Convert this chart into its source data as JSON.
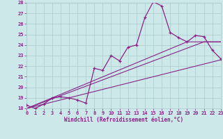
{
  "xlabel": "Windchill (Refroidissement éolien,°C)",
  "x_values": [
    0,
    1,
    2,
    3,
    4,
    5,
    6,
    7,
    8,
    9,
    10,
    11,
    12,
    13,
    14,
    15,
    16,
    17,
    18,
    19,
    20,
    21,
    22,
    23
  ],
  "y_main": [
    18.3,
    18.0,
    18.4,
    19.0,
    19.1,
    19.0,
    18.8,
    18.5,
    21.8,
    21.6,
    23.0,
    22.5,
    23.8,
    24.0,
    26.6,
    28.1,
    27.7,
    25.2,
    24.7,
    24.3,
    24.9,
    24.8,
    23.5,
    22.7
  ],
  "ylim": [
    18,
    28
  ],
  "xlim": [
    0,
    23
  ],
  "yticks": [
    18,
    19,
    20,
    21,
    22,
    23,
    24,
    25,
    26,
    27,
    28
  ],
  "xticks": [
    0,
    1,
    2,
    3,
    4,
    5,
    6,
    7,
    8,
    9,
    10,
    11,
    12,
    13,
    14,
    15,
    16,
    17,
    18,
    19,
    20,
    21,
    22,
    23
  ],
  "line_color": "#882288",
  "bg_color": "#cce8e8",
  "grid_color": "#aacccc",
  "ref_line1": [
    [
      0,
      18.0
    ],
    [
      23,
      22.6
    ]
  ],
  "ref_line2": [
    [
      0,
      18.0
    ],
    [
      20,
      24.3
    ],
    [
      23,
      24.3
    ]
  ],
  "ref_line3": [
    [
      0,
      18.0
    ],
    [
      21,
      24.3
    ],
    [
      23,
      24.3
    ]
  ]
}
